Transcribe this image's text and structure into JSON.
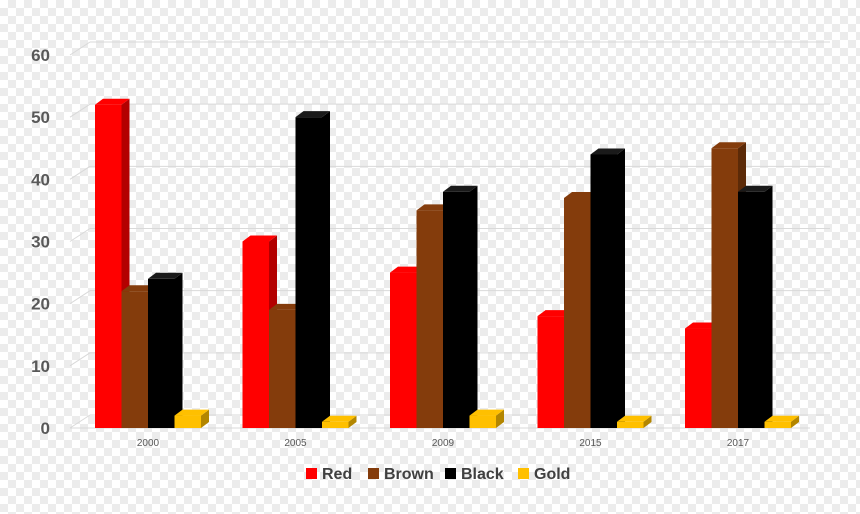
{
  "chart_data": {
    "type": "bar",
    "title": "",
    "xlabel": "",
    "ylabel": "",
    "categories": [
      "2000",
      "2005",
      "2009",
      "2015",
      "2017"
    ],
    "ylim": [
      0,
      60
    ],
    "yticks": [
      "0",
      "10",
      "20",
      "30",
      "40",
      "50",
      "60"
    ],
    "grid": true,
    "legend_position": "bottom",
    "series": [
      {
        "name": "Red",
        "color": "#ff0000",
        "values": [
          52,
          30,
          25,
          18,
          16
        ]
      },
      {
        "name": "Brown",
        "color": "#843c0c",
        "values": [
          22,
          19,
          35,
          37,
          45
        ]
      },
      {
        "name": "Black",
        "color": "#000000",
        "values": [
          24,
          50,
          38,
          44,
          38
        ]
      },
      {
        "name": "Gold",
        "color": "#ffc000",
        "values": [
          2,
          1,
          2,
          1,
          1
        ]
      }
    ]
  }
}
